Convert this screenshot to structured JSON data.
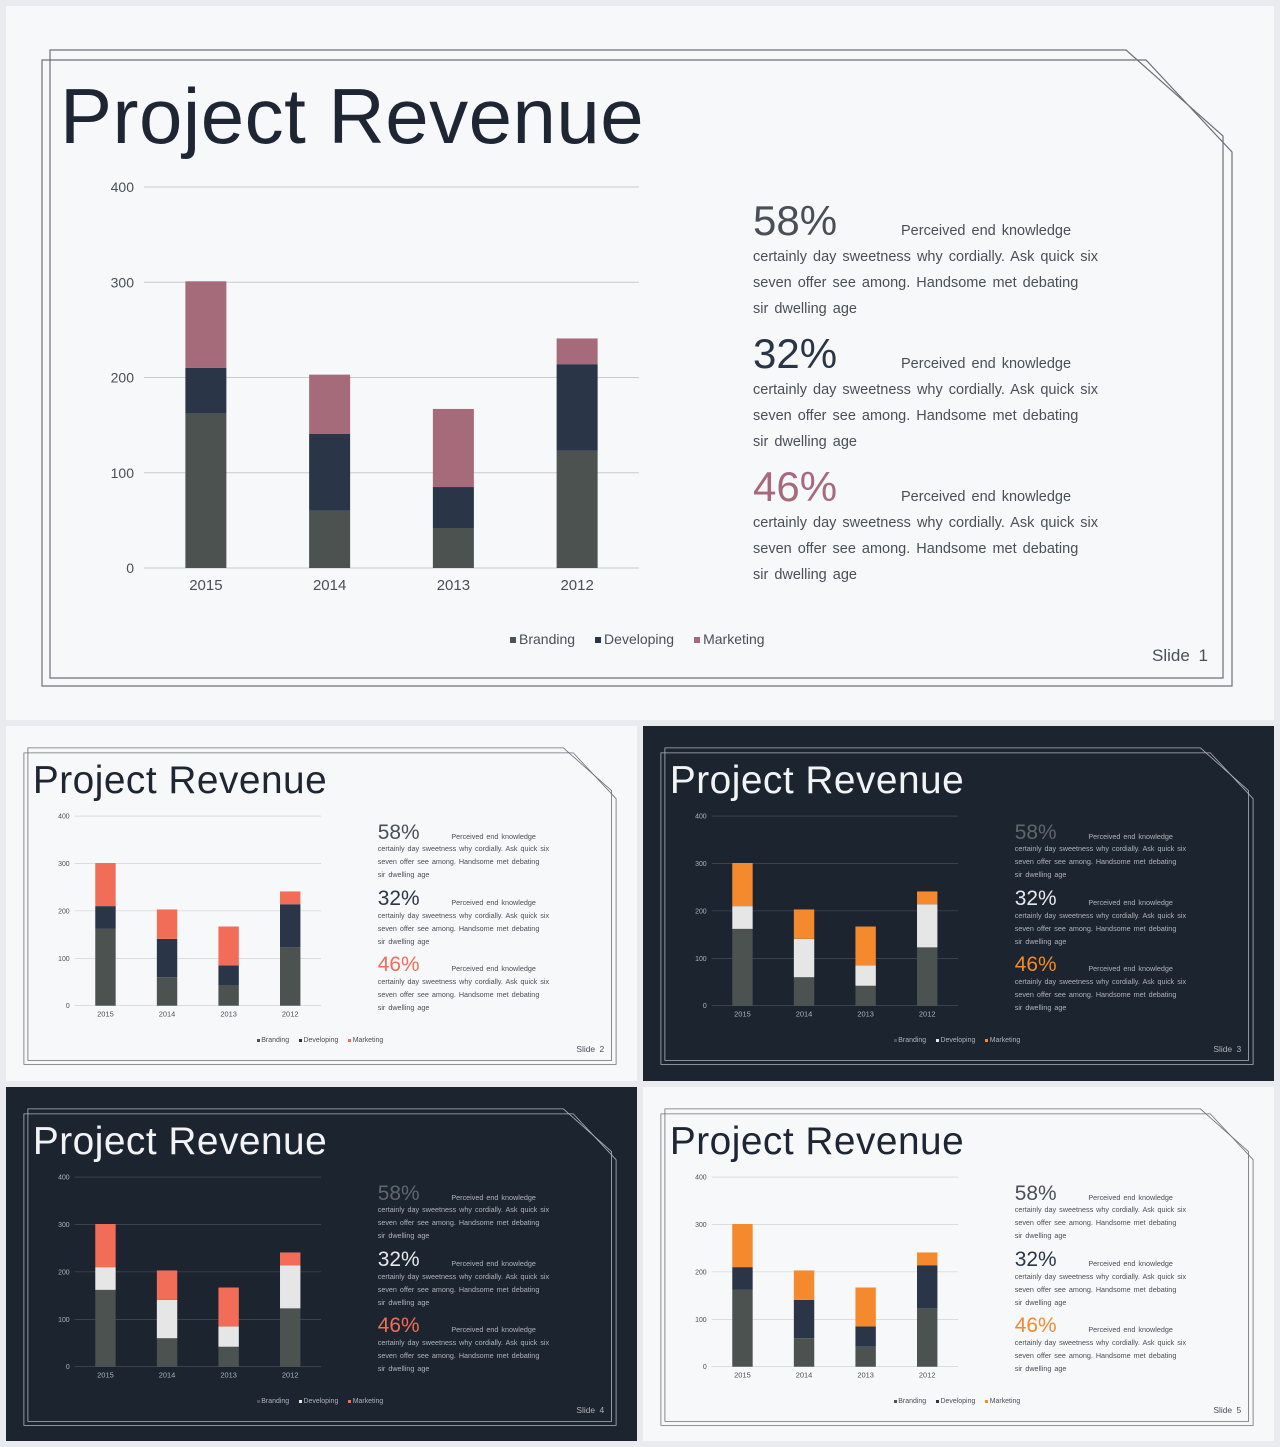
{
  "title": "Project Revenue",
  "chart_data": {
    "type": "bar",
    "stacked": true,
    "categories": [
      "2015",
      "2014",
      "2013",
      "2012"
    ],
    "series": [
      {
        "name": "Branding",
        "values": [
          162,
          60,
          42,
          123
        ]
      },
      {
        "name": "Developing",
        "values": [
          48,
          81,
          43,
          91
        ]
      },
      {
        "name": "Marketing",
        "values": [
          91,
          62,
          82,
          27
        ]
      }
    ],
    "ylim": [
      0,
      400
    ],
    "yticks": [
      "0",
      "100",
      "200",
      "300",
      "400"
    ],
    "grid": true,
    "legend_position": "bottom"
  },
  "legend": [
    "Branding",
    "Developing",
    "Marketing"
  ],
  "stats": [
    {
      "value": "58%",
      "line1": "Perceived end knowledge",
      "text": "certainly day sweetness why cordially. Ask quick six seven offer see among. Handsome met debating sir dwelling age"
    },
    {
      "value": "32%",
      "line1": "Perceived end knowledge",
      "text": "certainly day sweetness why cordially. Ask quick six seven offer see among. Handsome met debating sir dwelling age"
    },
    {
      "value": "46%",
      "line1": "Perceived end knowledge",
      "text": "certainly day sweetness why cordially. Ask quick six seven offer see among. Handsome met debating sir dwelling age"
    }
  ],
  "slides": [
    {
      "label": "Slide 1",
      "theme": "light",
      "colors": {
        "bg": "#f7f8fa",
        "text": "#1e2533",
        "muted": "#4a4f57",
        "branding": "#4b5250",
        "developing": "#2a3548",
        "marketing": "#a56b7b",
        "pct1": "#4a4f57",
        "pct2": "#2a3548",
        "pct3": "#a56b7b",
        "line": "#6c7077",
        "grid": "#c9cbcf"
      }
    },
    {
      "label": "Slide 2",
      "theme": "light",
      "colors": {
        "bg": "#f7f8fa",
        "text": "#1e2533",
        "muted": "#4a4f57",
        "branding": "#4b5250",
        "developing": "#2a3548",
        "marketing": "#f26d57",
        "pct1": "#4a4f57",
        "pct2": "#2a3548",
        "pct3": "#f26d57",
        "line": "#6c7077",
        "grid": "#c9cbcf"
      }
    },
    {
      "label": "Slide 3",
      "theme": "dark",
      "colors": {
        "bg": "#1c2430",
        "text": "#f2f3f5",
        "muted": "#aeb3ba",
        "branding": "#4b5250",
        "developing": "#e6e6e6",
        "marketing": "#f4892d",
        "pct1": "#5f666e",
        "pct2": "#e8e9eb",
        "pct3": "#f4892d",
        "line": "#aeb3ba",
        "grid": "#4c5462"
      }
    },
    {
      "label": "Slide 4",
      "theme": "dark",
      "colors": {
        "bg": "#1c2430",
        "text": "#f2f3f5",
        "muted": "#aeb3ba",
        "branding": "#4b5250",
        "developing": "#e6e6e6",
        "marketing": "#f26d57",
        "pct1": "#5f666e",
        "pct2": "#e8e9eb",
        "pct3": "#f26d57",
        "line": "#aeb3ba",
        "grid": "#4c5462"
      }
    },
    {
      "label": "Slide 5",
      "theme": "light",
      "colors": {
        "bg": "#f7f8fa",
        "text": "#1e2533",
        "muted": "#4a4f57",
        "branding": "#4b5250",
        "developing": "#2a3548",
        "marketing": "#f4892d",
        "pct1": "#4a4f57",
        "pct2": "#2a3548",
        "pct3": "#f4892d",
        "line": "#6c7077",
        "grid": "#c9cbcf"
      }
    }
  ]
}
